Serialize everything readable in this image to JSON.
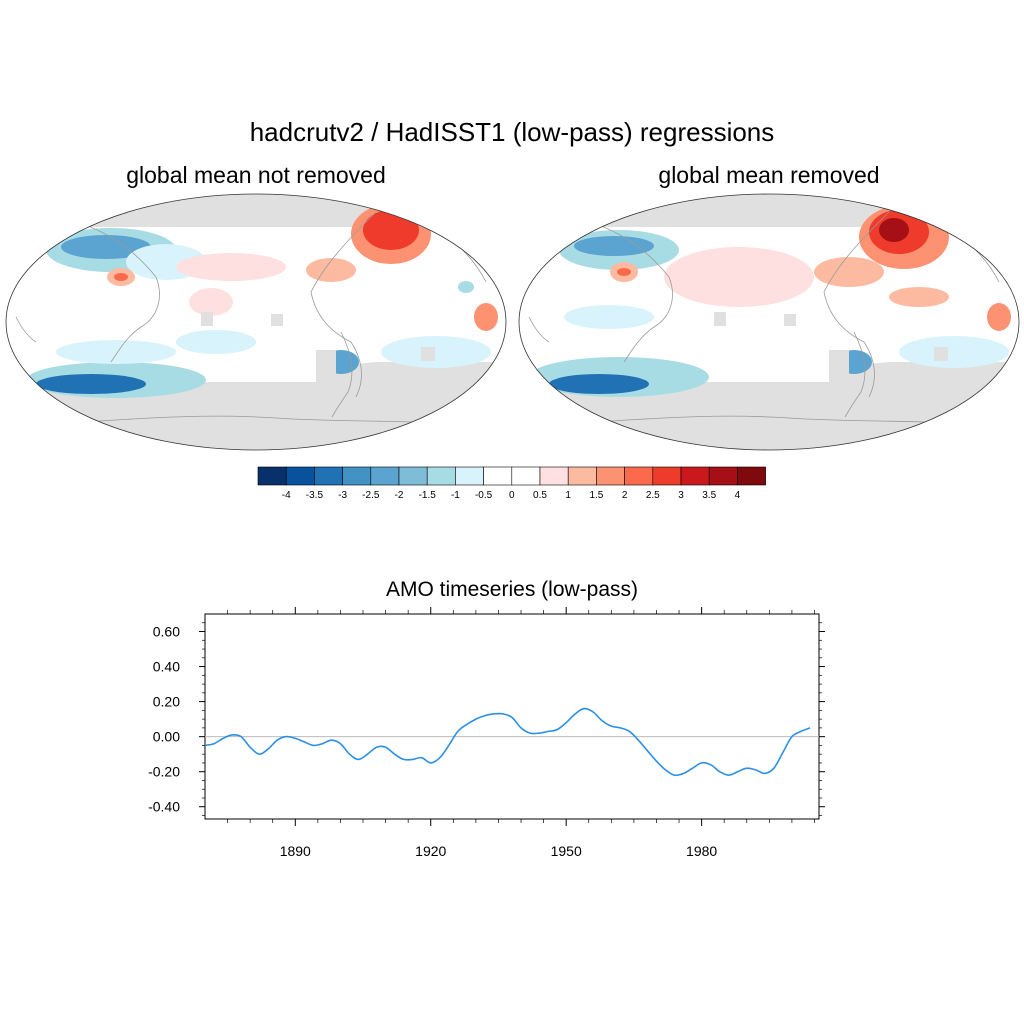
{
  "figure": {
    "title": "hadcrutv2  / HadISST1  (low-pass)  regressions"
  },
  "maps": [
    {
      "subtitle": "global mean not removed"
    },
    {
      "subtitle": "global mean removed"
    }
  ],
  "colorbar": {
    "colors": [
      "#08306b",
      "#08519c",
      "#2171b5",
      "#4292c6",
      "#5ba3d0",
      "#7fbcd7",
      "#a8dce4",
      "#d8f3fb",
      "#ffffff",
      "#ffffff",
      "#fde0df",
      "#fcbba1",
      "#fc9272",
      "#fb6a4a",
      "#ef3b2c",
      "#cb181d",
      "#a50f15",
      "#7f0a0e"
    ],
    "labels": [
      "-4",
      "-3.5",
      "-3",
      "-2.5",
      "-2",
      "-1.5",
      "-1",
      "-0.5",
      "0",
      "0.5",
      "1",
      "1.5",
      "2",
      "2.5",
      "3",
      "3.5",
      "4"
    ]
  },
  "chart_data": {
    "type": "line",
    "title": "AMO timeseries (low-pass)",
    "xlabel": "",
    "ylabel": "",
    "xlim": [
      1870,
      2006
    ],
    "ylim": [
      -0.47,
      0.7
    ],
    "x_ticks": [
      1890,
      1920,
      1950,
      1980
    ],
    "y_ticks": [
      -0.4,
      -0.2,
      0.0,
      0.2,
      0.4,
      0.6
    ],
    "y_tick_labels": [
      "-0.40",
      "-0.20",
      "0.00",
      "0.20",
      "0.40",
      "0.60"
    ],
    "reference_line": 0.0,
    "line_color": "#2b8fe6",
    "series": [
      {
        "name": "AMO",
        "x": [
          1870,
          1872,
          1874,
          1876,
          1878,
          1880,
          1882,
          1884,
          1886,
          1888,
          1890,
          1892,
          1894,
          1896,
          1898,
          1900,
          1902,
          1904,
          1906,
          1908,
          1910,
          1912,
          1914,
          1916,
          1918,
          1920,
          1922,
          1924,
          1926,
          1928,
          1930,
          1932,
          1934,
          1936,
          1938,
          1940,
          1942,
          1944,
          1946,
          1948,
          1950,
          1952,
          1954,
          1956,
          1958,
          1960,
          1962,
          1964,
          1966,
          1968,
          1970,
          1972,
          1974,
          1976,
          1978,
          1980,
          1982,
          1984,
          1986,
          1988,
          1990,
          1992,
          1994,
          1996,
          1998,
          2000,
          2002,
          2004
        ],
        "values": [
          -0.05,
          -0.04,
          -0.01,
          0.01,
          0.0,
          -0.06,
          -0.1,
          -0.07,
          -0.02,
          0.0,
          -0.01,
          -0.03,
          -0.05,
          -0.04,
          -0.02,
          -0.04,
          -0.1,
          -0.13,
          -0.1,
          -0.06,
          -0.06,
          -0.1,
          -0.13,
          -0.13,
          -0.12,
          -0.15,
          -0.12,
          -0.05,
          0.03,
          0.07,
          0.1,
          0.12,
          0.13,
          0.13,
          0.11,
          0.05,
          0.02,
          0.02,
          0.03,
          0.04,
          0.08,
          0.13,
          0.16,
          0.14,
          0.09,
          0.06,
          0.05,
          0.03,
          -0.02,
          -0.08,
          -0.14,
          -0.19,
          -0.22,
          -0.21,
          -0.18,
          -0.15,
          -0.16,
          -0.2,
          -0.22,
          -0.2,
          -0.18,
          -0.19,
          -0.21,
          -0.18,
          -0.09,
          0.0,
          0.03,
          0.05
        ]
      }
    ]
  }
}
